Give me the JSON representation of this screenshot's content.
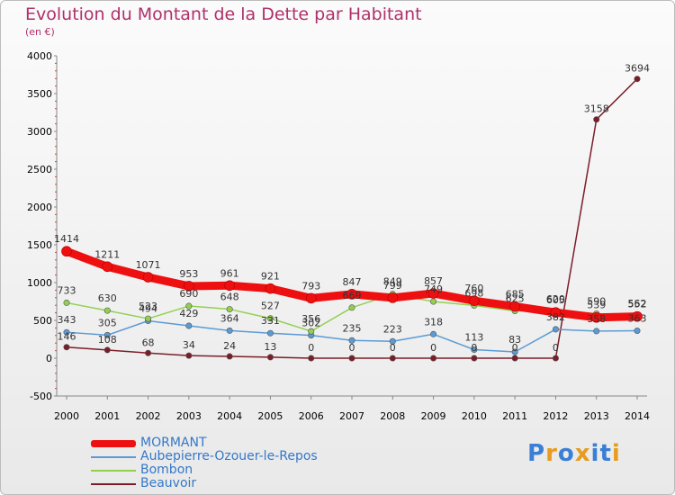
{
  "title": "Evolution du Montant de la Dette par Habitant",
  "subtitle": "(en €)",
  "logo_text": "Proxiti",
  "chart_data": {
    "type": "line",
    "categories": [
      "2000",
      "2001",
      "2002",
      "2003",
      "2004",
      "2005",
      "2006",
      "2007",
      "2008",
      "2009",
      "2010",
      "2011",
      "2012",
      "2013",
      "2014"
    ],
    "ylim": [
      -500,
      4000
    ],
    "yticks": [
      -500,
      0,
      500,
      1000,
      1500,
      2000,
      2500,
      3000,
      3500,
      4000
    ],
    "grid": false,
    "legend_position": "bottom-left",
    "series": [
      {
        "name": "MORMANT",
        "color": "#ee1010",
        "values": [
          1414,
          1211,
          1071,
          953,
          961,
          921,
          793,
          847,
          799,
          857,
          760,
          685,
          605,
          539,
          552
        ]
      },
      {
        "name": "Aubepierre-Ozouer-le-Repos",
        "color": "#5b9bd5",
        "values": [
          343,
          305,
          494,
          429,
          364,
          331,
          302,
          235,
          223,
          318,
          113,
          83,
          382,
          358,
          363
        ]
      },
      {
        "name": "Bombon",
        "color": "#92d050",
        "values": [
          733,
          630,
          523,
          690,
          648,
          527,
          356,
          669,
          849,
          749,
          698,
          625,
          620,
          590,
          562
        ]
      },
      {
        "name": "Beauvoir",
        "color": "#7b1d28",
        "values": [
          146,
          108,
          68,
          34,
          24,
          13,
          0,
          0,
          0,
          0,
          0,
          0,
          0,
          3158,
          3694
        ]
      }
    ]
  }
}
